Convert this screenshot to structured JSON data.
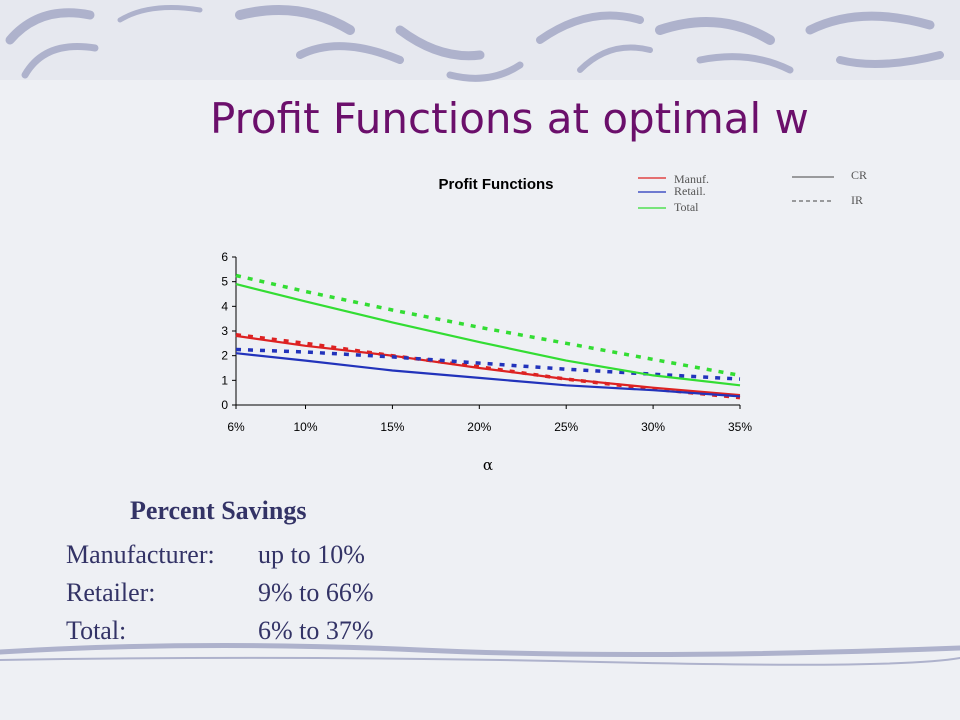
{
  "slide": {
    "title": "Profit Functions at optimal w"
  },
  "chart_data": {
    "type": "line",
    "title": "Profit Functions",
    "xlabel": "α",
    "ylabel": "",
    "categories": [
      "6%",
      "10%",
      "15%",
      "20%",
      "25%",
      "30%",
      "35%"
    ],
    "xvalues": [
      6,
      10,
      15,
      20,
      25,
      30,
      35
    ],
    "yticks": [
      "0",
      "1",
      "2",
      "3",
      "4",
      "5",
      "6"
    ],
    "ylim": [
      0,
      6
    ],
    "grid": false,
    "legend": {
      "placement": "top-right",
      "entity_keys": [
        {
          "label": "Manuf.",
          "color": "#dd2222"
        },
        {
          "label": "Retail.",
          "color": "#2233bb"
        },
        {
          "label": "Total",
          "color": "#33dd33"
        }
      ],
      "style_keys": [
        {
          "label": "CR",
          "dash": "solid"
        },
        {
          "label": "IR",
          "dash": "dashed"
        }
      ]
    },
    "series": [
      {
        "entity": "Manuf.",
        "style": "CR",
        "color": "#dd2222",
        "dash": "solid",
        "values": [
          2.8,
          2.4,
          2.0,
          1.5,
          1.05,
          0.7,
          0.4
        ]
      },
      {
        "entity": "Manuf.",
        "style": "IR",
        "color": "#dd2222",
        "dash": "dashed",
        "values": [
          2.85,
          2.5,
          2.0,
          1.55,
          1.05,
          0.65,
          0.3
        ]
      },
      {
        "entity": "Retail.",
        "style": "CR",
        "color": "#2233bb",
        "dash": "solid",
        "values": [
          2.1,
          1.8,
          1.4,
          1.1,
          0.8,
          0.6,
          0.35
        ]
      },
      {
        "entity": "Retail.",
        "style": "IR",
        "color": "#2233bb",
        "dash": "dashed",
        "values": [
          2.25,
          2.15,
          1.95,
          1.7,
          1.45,
          1.25,
          1.05
        ]
      },
      {
        "entity": "Total",
        "style": "CR",
        "color": "#33dd33",
        "dash": "solid",
        "values": [
          4.9,
          4.2,
          3.35,
          2.55,
          1.8,
          1.2,
          0.8
        ]
      },
      {
        "entity": "Total",
        "style": "IR",
        "color": "#33dd33",
        "dash": "dashed",
        "values": [
          5.25,
          4.6,
          3.85,
          3.15,
          2.5,
          1.85,
          1.2
        ]
      }
    ]
  },
  "savings": {
    "heading": "Percent Savings",
    "rows": [
      {
        "label": "Manufacturer:",
        "value": "up to 10%"
      },
      {
        "label": "Retailer:",
        "value": "9% to 66%"
      },
      {
        "label": "Total:",
        "value": "6% to 37%"
      }
    ]
  }
}
